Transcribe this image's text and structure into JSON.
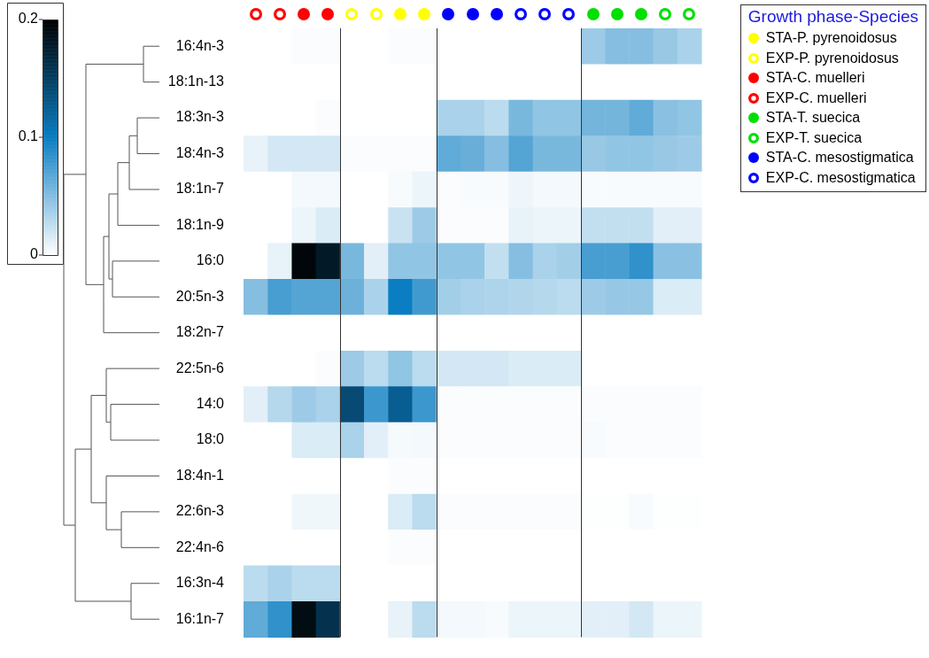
{
  "chart_data": {
    "type": "heatmap",
    "categories": [
      null,
      null,
      null,
      null,
      null,
      null,
      null,
      null,
      null,
      null,
      null,
      null,
      null,
      null,
      null,
      null,
      null,
      null,
      null
    ],
    "y_categories": [
      "16:4n-3",
      "18:1n-13",
      "18:3n-3",
      "18:4n-3",
      "18:1n-7",
      "18:1n-9",
      "16:0",
      "20:5n-3",
      "18:2n-7",
      "22:5n-6",
      "14:0",
      "18:0",
      "18:4n-1",
      "22:6n-3",
      "22:4n-6",
      "16:3n-4",
      "16:1n-7"
    ],
    "cells": [
      [
        0,
        0,
        0.002,
        0.002,
        0,
        0,
        0.002,
        0.002,
        0,
        0,
        0,
        0,
        0,
        0,
        0.04,
        0.05,
        0.05,
        0.042,
        0.035
      ],
      [
        0,
        0,
        0,
        0,
        0,
        0,
        0,
        0,
        0,
        0,
        0,
        0,
        0,
        0,
        0,
        0,
        0,
        0,
        0
      ],
      [
        0,
        0,
        0,
        0.002,
        0,
        0,
        0,
        0,
        0.035,
        0.035,
        0.028,
        0.055,
        0.045,
        0.045,
        0.057,
        0.057,
        0.065,
        0.048,
        0.045
      ],
      [
        0.01,
        0.018,
        0.018,
        0.018,
        0.002,
        0.002,
        0.002,
        0.002,
        0.065,
        0.062,
        0.05,
        0.07,
        0.055,
        0.055,
        0.042,
        0.045,
        0.045,
        0.042,
        0.04
      ],
      [
        0,
        0,
        0.005,
        0.005,
        0,
        0,
        0.003,
        0.008,
        0.002,
        0.003,
        0.003,
        0.007,
        0.005,
        0.005,
        0.003,
        0.003,
        0.003,
        0.003,
        0.003
      ],
      [
        0,
        0,
        0.008,
        0.015,
        0,
        0,
        0.022,
        0.04,
        0.002,
        0.002,
        0.002,
        0.01,
        0.008,
        0.008,
        0.025,
        0.025,
        0.025,
        0.012,
        0.012
      ],
      [
        0,
        0.01,
        0.195,
        0.18,
        0.055,
        0.012,
        0.045,
        0.045,
        0.045,
        0.045,
        0.025,
        0.05,
        0.035,
        0.038,
        0.075,
        0.075,
        0.085,
        0.048,
        0.048
      ],
      [
        0.05,
        0.075,
        0.07,
        0.07,
        0.06,
        0.035,
        0.1,
        0.078,
        0.038,
        0.035,
        0.033,
        0.032,
        0.03,
        0.028,
        0.04,
        0.043,
        0.043,
        0.015,
        0.015
      ],
      [
        0,
        0,
        0,
        0,
        0,
        0,
        0,
        0,
        0,
        0,
        0,
        0,
        0,
        0,
        0,
        0,
        0,
        0,
        0
      ],
      [
        0,
        0,
        0,
        0.002,
        0.04,
        0.028,
        0.045,
        0.028,
        0.018,
        0.018,
        0.018,
        0.015,
        0.015,
        0.015,
        0,
        0,
        0,
        0,
        0
      ],
      [
        0.012,
        0.03,
        0.04,
        0.035,
        0.14,
        0.08,
        0.125,
        0.08,
        0.002,
        0.002,
        0.002,
        0.002,
        0.002,
        0.002,
        0.002,
        0.002,
        0.002,
        0.002,
        0.002
      ],
      [
        0,
        0,
        0.015,
        0.015,
        0.035,
        0.012,
        0.004,
        0.005,
        0.002,
        0.002,
        0.002,
        0.002,
        0.002,
        0.002,
        0.003,
        0.002,
        0.002,
        0.002,
        0.002
      ],
      [
        0,
        0,
        0,
        0,
        0,
        0,
        0.002,
        0.002,
        0,
        0,
        0,
        0,
        0,
        0,
        0,
        0,
        0,
        0,
        0
      ],
      [
        0,
        0,
        0.006,
        0.006,
        0,
        0,
        0.015,
        0.028,
        0.002,
        0.002,
        0.002,
        0.002,
        0.002,
        0.002,
        0.001,
        0.001,
        0.003,
        0.001,
        0.001
      ],
      [
        0,
        0,
        0,
        0,
        0,
        0,
        0.002,
        0.002,
        0,
        0,
        0,
        0,
        0,
        0,
        0,
        0,
        0,
        0,
        0
      ],
      [
        0.028,
        0.035,
        0.028,
        0.028,
        0,
        0,
        0,
        0,
        0,
        0,
        0,
        0,
        0,
        0,
        0,
        0,
        0,
        0,
        0
      ],
      [
        0.065,
        0.085,
        0.19,
        0.16,
        0,
        0,
        0.01,
        0.028,
        0.005,
        0.005,
        0.003,
        0.008,
        0.008,
        0.008,
        0.012,
        0.012,
        0.018,
        0.008,
        0.008
      ]
    ],
    "clim": [
      0,
      0.2
    ],
    "cticks": [
      0,
      0.1,
      0.2
    ],
    "legend_title": "Growth phase-Species",
    "annotations": [
      "STA-P. pyrenoidosus",
      "EXP-P. pyrenoidosus",
      "STA-C. muelleri",
      "EXP-C. muelleri",
      "STA-T. suecica",
      "EXP-T. suecica",
      "STA-C. mesostigmatica",
      "EXP-C. mesostigmatica"
    ],
    "tick_labels": "y"
  }
}
